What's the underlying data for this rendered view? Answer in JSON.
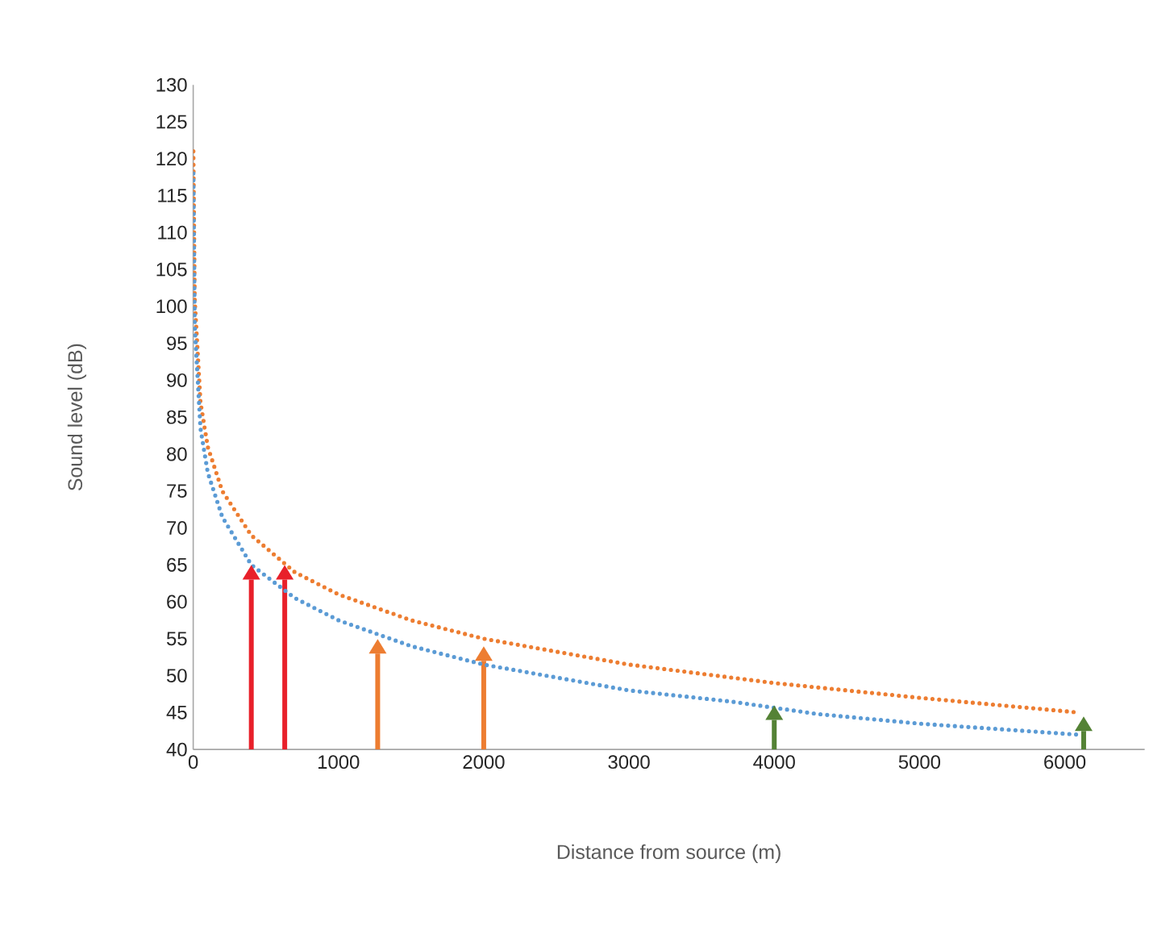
{
  "chart_data": {
    "type": "line",
    "xlabel": "Distance from source (m)",
    "ylabel": "Sound level (dB)",
    "xlim": [
      0,
      6550
    ],
    "ylim": [
      40,
      130
    ],
    "xticks": [
      0,
      1000,
      2000,
      3000,
      4000,
      5000,
      6000
    ],
    "yticks": [
      40,
      45,
      50,
      55,
      60,
      65,
      70,
      75,
      80,
      85,
      90,
      95,
      100,
      105,
      110,
      115,
      120,
      125,
      130
    ],
    "grid": false,
    "line_style": "dotted",
    "marker": "none",
    "series": [
      {
        "color": "#ed7d31",
        "x": [
          1,
          10,
          50,
          100,
          200,
          400,
          700,
          1000,
          1500,
          2000,
          3000,
          4000,
          5000,
          6100
        ],
        "values": [
          121,
          101,
          87,
          81,
          75,
          69,
          64,
          61,
          57.5,
          55,
          51.5,
          49,
          47,
          45
        ]
      },
      {
        "color": "#5b9bd5",
        "x": [
          1,
          10,
          50,
          100,
          200,
          400,
          700,
          1000,
          1500,
          2000,
          3000,
          3700,
          4300,
          5000,
          6100
        ],
        "values": [
          118,
          97.5,
          83.5,
          77.5,
          71.5,
          65,
          60.5,
          57.5,
          54,
          51.5,
          48,
          46.5,
          44.8,
          43.5,
          42
        ]
      },
      {
        "type": "bar",
        "x": [
          400,
          630,
          1270,
          2000,
          4000,
          6130
        ],
        "values": [
          63,
          63,
          53,
          52,
          44,
          42.5
        ],
        "colors": [
          "#e8202a",
          "#e8202a",
          "#ed7d31",
          "#ed7d31",
          "#548235",
          "#548235"
        ]
      }
    ]
  }
}
